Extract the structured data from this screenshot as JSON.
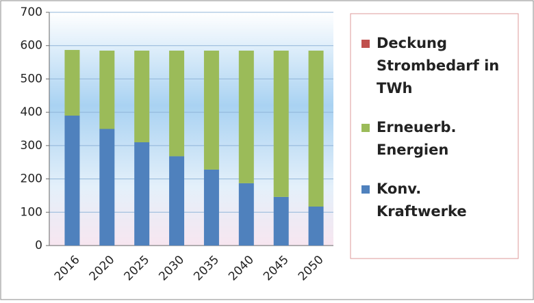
{
  "chart_data": {
    "type": "stacked_bar",
    "categories": [
      "2016",
      "2020",
      "2025",
      "2030",
      "2035",
      "2040",
      "2045",
      "2050"
    ],
    "series": [
      {
        "name": "Konv. Kraftwerke",
        "color": "#4f81bd",
        "values": [
          390,
          350,
          310,
          268,
          228,
          187,
          146,
          117
        ]
      },
      {
        "name": "Erneuerb. Energien",
        "color": "#9bbb59",
        "values": [
          197,
          235,
          275,
          317,
          357,
          398,
          439,
          468
        ]
      },
      {
        "name": "Deckung Strombedarf in TWh",
        "color": "#c0504d",
        "values": [
          null,
          null,
          null,
          null,
          null,
          null,
          null,
          null
        ]
      }
    ],
    "ylim": [
      0,
      700
    ],
    "yticks": [
      0,
      100,
      200,
      300,
      400,
      500,
      600,
      700
    ],
    "grid": true,
    "legend": "right"
  }
}
